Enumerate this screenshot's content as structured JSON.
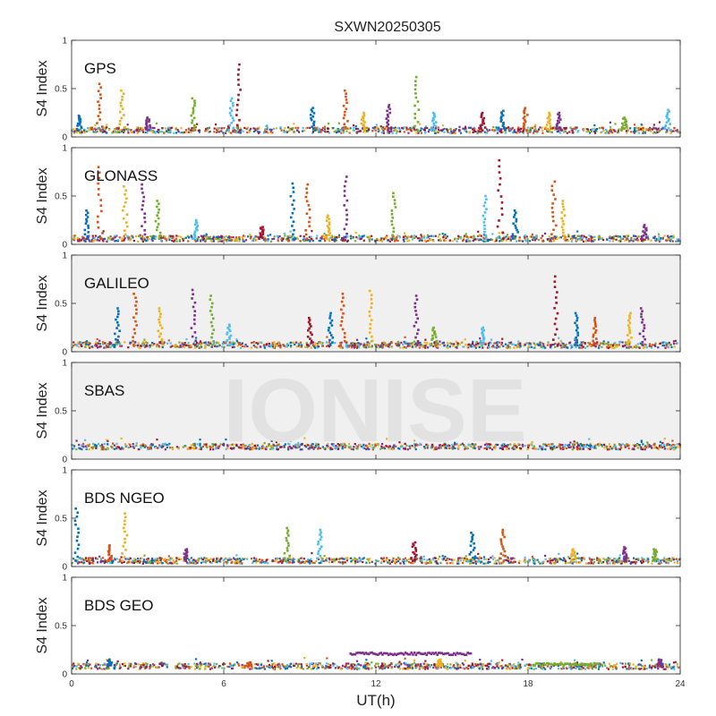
{
  "chart_data": {
    "type": "scatter",
    "title": "SXWN20250305",
    "xlabel": "UT(h)",
    "ylabel": "S4 Index",
    "xlim": [
      0,
      24
    ],
    "ylim": [
      0,
      1
    ],
    "x_ticks": [
      0,
      6,
      12,
      18,
      24
    ],
    "y_ticks": [
      0,
      0.5,
      1
    ],
    "y_tick_labels": [
      "0",
      "0.5",
      "1"
    ],
    "grid": false,
    "watermark": "IONISE",
    "colors": [
      "#0072BD",
      "#D95319",
      "#EDB120",
      "#7E2F8E",
      "#77AC30",
      "#4DBEEE",
      "#A2142F"
    ],
    "panels": [
      {
        "label": "GPS",
        "panel_bg": "#ffffff",
        "baseline": 0.07,
        "spikes": [
          {
            "x": 0.3,
            "y": 0.22
          },
          {
            "x": 1.1,
            "y": 0.55
          },
          {
            "x": 2.0,
            "y": 0.48
          },
          {
            "x": 3.0,
            "y": 0.2
          },
          {
            "x": 4.8,
            "y": 0.4
          },
          {
            "x": 6.3,
            "y": 0.4
          },
          {
            "x": 6.6,
            "y": 0.75
          },
          {
            "x": 9.5,
            "y": 0.3
          },
          {
            "x": 10.8,
            "y": 0.48
          },
          {
            "x": 11.5,
            "y": 0.25
          },
          {
            "x": 12.5,
            "y": 0.33
          },
          {
            "x": 13.6,
            "y": 0.62
          },
          {
            "x": 14.3,
            "y": 0.25
          },
          {
            "x": 16.2,
            "y": 0.25
          },
          {
            "x": 17.0,
            "y": 0.27
          },
          {
            "x": 17.9,
            "y": 0.3
          },
          {
            "x": 18.8,
            "y": 0.25
          },
          {
            "x": 19.2,
            "y": 0.25
          },
          {
            "x": 21.8,
            "y": 0.2
          },
          {
            "x": 23.5,
            "y": 0.28
          }
        ]
      },
      {
        "label": "GLONASS",
        "panel_bg": "#ffffff",
        "baseline": 0.06,
        "spikes": [
          {
            "x": 0.6,
            "y": 0.35
          },
          {
            "x": 1.1,
            "y": 0.8
          },
          {
            "x": 2.1,
            "y": 0.6
          },
          {
            "x": 2.8,
            "y": 0.62
          },
          {
            "x": 3.4,
            "y": 0.45
          },
          {
            "x": 4.9,
            "y": 0.25
          },
          {
            "x": 7.5,
            "y": 0.18
          },
          {
            "x": 8.7,
            "y": 0.63
          },
          {
            "x": 9.3,
            "y": 0.62
          },
          {
            "x": 10.1,
            "y": 0.3
          },
          {
            "x": 10.8,
            "y": 0.7
          },
          {
            "x": 12.7,
            "y": 0.53
          },
          {
            "x": 16.3,
            "y": 0.5
          },
          {
            "x": 16.9,
            "y": 0.87
          },
          {
            "x": 17.5,
            "y": 0.35
          },
          {
            "x": 19.0,
            "y": 0.65
          },
          {
            "x": 19.4,
            "y": 0.45
          },
          {
            "x": 22.6,
            "y": 0.2
          }
        ]
      },
      {
        "label": "GALILEO",
        "panel_bg": "#f0f0f0",
        "baseline": 0.07,
        "spikes": [
          {
            "x": 1.8,
            "y": 0.45
          },
          {
            "x": 2.5,
            "y": 0.6
          },
          {
            "x": 3.5,
            "y": 0.45
          },
          {
            "x": 4.8,
            "y": 0.64
          },
          {
            "x": 5.5,
            "y": 0.58
          },
          {
            "x": 6.2,
            "y": 0.28
          },
          {
            "x": 9.4,
            "y": 0.35
          },
          {
            "x": 10.2,
            "y": 0.4
          },
          {
            "x": 10.7,
            "y": 0.6
          },
          {
            "x": 11.8,
            "y": 0.63
          },
          {
            "x": 13.6,
            "y": 0.58
          },
          {
            "x": 14.3,
            "y": 0.25
          },
          {
            "x": 16.2,
            "y": 0.25
          },
          {
            "x": 19.1,
            "y": 0.78
          },
          {
            "x": 19.9,
            "y": 0.4
          },
          {
            "x": 20.6,
            "y": 0.35
          },
          {
            "x": 22.0,
            "y": 0.4
          },
          {
            "x": 22.5,
            "y": 0.45
          }
        ]
      },
      {
        "label": "SBAS",
        "panel_bg": "#f0f0f0",
        "baseline": 0.13,
        "spikes": []
      },
      {
        "label": "BDS NGEO",
        "panel_bg": "#ffffff",
        "baseline": 0.06,
        "spikes": [
          {
            "x": 0.2,
            "y": 0.6
          },
          {
            "x": 1.5,
            "y": 0.22
          },
          {
            "x": 2.1,
            "y": 0.55
          },
          {
            "x": 4.5,
            "y": 0.18
          },
          {
            "x": 8.5,
            "y": 0.4
          },
          {
            "x": 9.8,
            "y": 0.38
          },
          {
            "x": 13.5,
            "y": 0.25
          },
          {
            "x": 15.8,
            "y": 0.35
          },
          {
            "x": 17.0,
            "y": 0.38
          },
          {
            "x": 19.8,
            "y": 0.18
          },
          {
            "x": 21.8,
            "y": 0.2
          },
          {
            "x": 23.0,
            "y": 0.18
          }
        ]
      },
      {
        "label": "BDS GEO",
        "panel_bg": "#ffffff",
        "baseline": 0.08,
        "spikes": [
          {
            "x": 1.5,
            "y": 0.15
          },
          {
            "x": 7.0,
            "y": 0.12
          },
          {
            "x": 14.5,
            "y": 0.15
          },
          {
            "x": 23.2,
            "y": 0.15
          }
        ],
        "segments": [
          {
            "x0": 11.0,
            "x1": 15.8,
            "y": 0.21,
            "color_index": 3
          },
          {
            "x0": 18.2,
            "x1": 20.8,
            "y": 0.1,
            "color_index": 4
          }
        ]
      }
    ]
  }
}
